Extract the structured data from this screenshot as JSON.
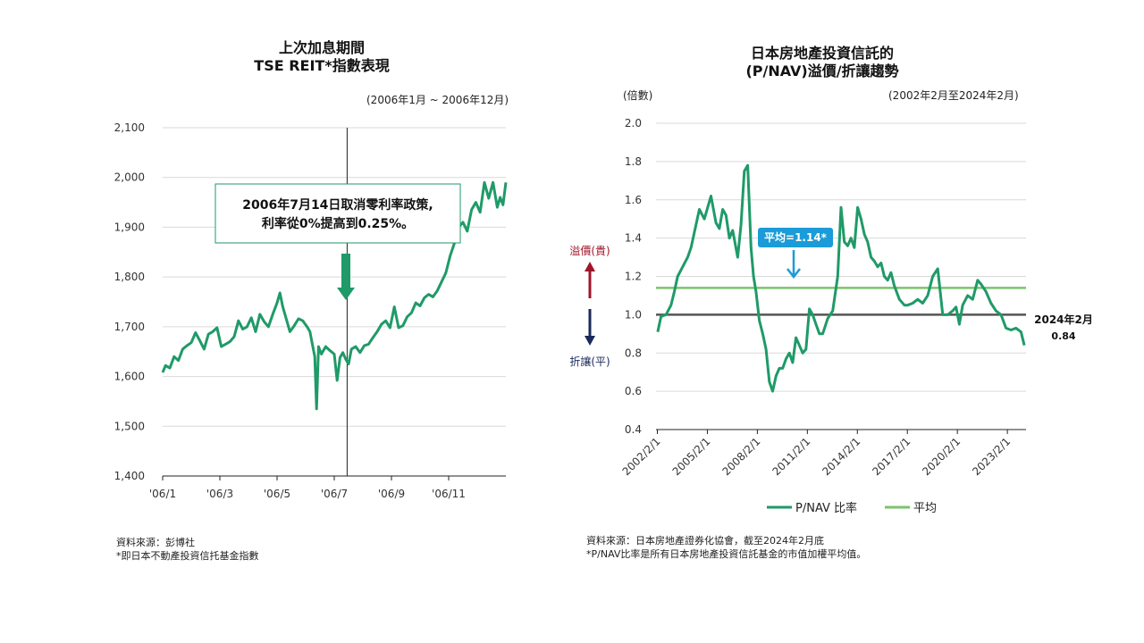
{
  "left": {
    "title1": "上次加息期間",
    "title2": "TSE REIT*指數表現",
    "period": "(2006年1月 ~ 2006年12月)",
    "annotation1": "2006年7月14日取消零利率政策,",
    "annotation2": "利率從0%提高到0.25%。",
    "source": "資料來源：彭博社",
    "footnote": "*即日本不動產投資信托基金指數"
  },
  "right": {
    "title1": "日本房地產投資信託的",
    "title2": "(P/NAV)溢價/折讓趨勢",
    "period": "(2002年2月至2024年2月)",
    "unit": "(倍數)",
    "premium_label": "溢價(貴)",
    "discount_label": "折讓(平)",
    "avg_callout": "平均=1.14*",
    "end_label1": "2024年2月",
    "end_label2": "0.84",
    "legend_pnav": "P/NAV 比率",
    "legend_avg": "平均",
    "source": "資料來源：日本房地產證券化協會，截至2024年2月底",
    "footnote": "*P/NAV比率是所有日本房地產投資信託基金的市值加權平均值。"
  },
  "colors": {
    "series": "#1f9a68",
    "average": "#7cc36b",
    "parity": "#555555",
    "premium": "#a0152a",
    "discount": "#1a2a5a",
    "callout": "#1b9bd7"
  },
  "chart_data": [
    {
      "type": "line",
      "title": "上次加息期間 TSE REIT*指數表現",
      "xlabel": "",
      "ylabel": "",
      "ylim": [
        1400,
        2100
      ],
      "yticks": [
        "1,400",
        "1,500",
        "1,600",
        "1,700",
        "1,800",
        "1,900",
        "2,000",
        "2,100"
      ],
      "yticks_values": [
        1400,
        1500,
        1600,
        1700,
        1800,
        1900,
        2000,
        2100
      ],
      "xticks": [
        "'06/1",
        "'06/3",
        "'06/5",
        "'06/7",
        "'06/9",
        "'06/11"
      ],
      "xticks_months": [
        1,
        3,
        5,
        7,
        9,
        11
      ],
      "xlim_months": [
        1,
        13
      ],
      "event_month": 7.45,
      "grid": true,
      "series": [
        {
          "x": [
            1.0,
            1.1,
            1.25,
            1.4,
            1.55,
            1.7,
            1.85,
            2.0,
            2.15,
            2.3,
            2.45,
            2.6,
            2.75,
            2.9,
            3.05,
            3.2,
            3.35,
            3.5,
            3.65,
            3.8,
            3.95,
            4.1,
            4.25,
            4.4,
            4.55,
            4.7,
            4.85,
            5.0,
            5.1,
            5.2,
            5.3,
            5.45,
            5.6,
            5.75,
            5.9,
            6.05,
            6.15,
            6.25,
            6.32,
            6.38,
            6.45,
            6.55,
            6.7,
            6.85,
            7.0,
            7.1,
            7.2,
            7.3,
            7.4,
            7.5,
            7.6,
            7.75,
            7.9,
            8.05,
            8.2,
            8.35,
            8.5,
            8.65,
            8.8,
            8.95,
            9.1,
            9.25,
            9.4,
            9.55,
            9.7,
            9.85,
            10.0,
            10.15,
            10.3,
            10.45,
            10.6,
            10.75,
            10.9,
            11.05,
            11.2,
            11.35,
            11.5,
            11.65,
            11.8,
            11.95,
            12.1,
            12.25,
            12.4,
            12.55,
            12.7,
            12.8,
            12.9,
            13.0
          ],
          "y": [
            1608,
            1622,
            1617,
            1640,
            1632,
            1655,
            1662,
            1668,
            1688,
            1672,
            1655,
            1685,
            1690,
            1698,
            1660,
            1665,
            1670,
            1680,
            1712,
            1695,
            1700,
            1718,
            1690,
            1725,
            1710,
            1700,
            1725,
            1748,
            1768,
            1740,
            1720,
            1690,
            1702,
            1716,
            1712,
            1700,
            1690,
            1660,
            1640,
            1535,
            1660,
            1645,
            1660,
            1652,
            1645,
            1592,
            1638,
            1648,
            1635,
            1625,
            1655,
            1660,
            1648,
            1662,
            1665,
            1678,
            1690,
            1705,
            1712,
            1698,
            1740,
            1698,
            1702,
            1720,
            1728,
            1748,
            1742,
            1758,
            1765,
            1760,
            1772,
            1790,
            1808,
            1842,
            1868,
            1900,
            1910,
            1892,
            1935,
            1950,
            1930,
            1990,
            1958,
            1990,
            1940,
            1960,
            1945,
            1990
          ]
        }
      ]
    },
    {
      "type": "line",
      "title": "日本房地產投資信託的 (P/NAV)溢價/折讓趨勢",
      "xlabel": "",
      "ylabel": "(倍數)",
      "ylim": [
        0.4,
        2.0
      ],
      "yticks": [
        "0.4",
        "0.6",
        "0.8",
        "1.0",
        "1.2",
        "1.4",
        "1.6",
        "1.8",
        "2.0"
      ],
      "yticks_values": [
        0.4,
        0.6,
        0.8,
        1.0,
        1.2,
        1.4,
        1.6,
        1.8,
        2.0
      ],
      "xticks": [
        "2002/2/1",
        "2005/2/1",
        "2008/2/1",
        "2011/2/1",
        "2014/2/1",
        "2017/2/1",
        "2020/2/1",
        "2023/2/1"
      ],
      "xticks_years": [
        2002.08,
        2005.08,
        2008.08,
        2011.08,
        2014.08,
        2017.08,
        2020.08,
        2023.08
      ],
      "xlim_years": [
        2002.0,
        2024.2
      ],
      "grid": true,
      "series": [
        {
          "name": "P/NAV 比率",
          "x": [
            2002.1,
            2002.3,
            2002.6,
            2002.9,
            2003.1,
            2003.3,
            2003.6,
            2003.9,
            2004.1,
            2004.3,
            2004.6,
            2004.9,
            2005.1,
            2005.3,
            2005.6,
            2005.8,
            2006.0,
            2006.2,
            2006.4,
            2006.6,
            2006.9,
            2007.1,
            2007.3,
            2007.5,
            2007.7,
            2007.85,
            2008.0,
            2008.2,
            2008.4,
            2008.6,
            2008.8,
            2009.0,
            2009.2,
            2009.4,
            2009.6,
            2009.8,
            2010.0,
            2010.2,
            2010.4,
            2010.6,
            2010.8,
            2011.0,
            2011.2,
            2011.4,
            2011.6,
            2011.8,
            2012.0,
            2012.3,
            2012.6,
            2012.9,
            2013.1,
            2013.3,
            2013.5,
            2013.7,
            2013.9,
            2014.1,
            2014.3,
            2014.5,
            2014.7,
            2014.9,
            2015.1,
            2015.3,
            2015.5,
            2015.7,
            2015.9,
            2016.1,
            2016.3,
            2016.6,
            2016.9,
            2017.1,
            2017.4,
            2017.7,
            2018.0,
            2018.3,
            2018.6,
            2018.9,
            2019.2,
            2019.5,
            2019.8,
            2020.0,
            2020.2,
            2020.4,
            2020.7,
            2021.0,
            2021.3,
            2021.5,
            2021.8,
            2022.1,
            2022.4,
            2022.7,
            2023.0,
            2023.3,
            2023.6,
            2023.9,
            2024.1
          ],
          "y": [
            0.91,
            0.99,
            1.0,
            1.05,
            1.12,
            1.2,
            1.25,
            1.3,
            1.35,
            1.43,
            1.55,
            1.5,
            1.56,
            1.62,
            1.48,
            1.45,
            1.55,
            1.52,
            1.4,
            1.44,
            1.3,
            1.47,
            1.75,
            1.78,
            1.35,
            1.2,
            1.12,
            0.97,
            0.9,
            0.82,
            0.65,
            0.6,
            0.68,
            0.72,
            0.72,
            0.77,
            0.8,
            0.75,
            0.88,
            0.84,
            0.8,
            0.82,
            1.03,
            1.0,
            0.95,
            0.9,
            0.9,
            0.98,
            1.02,
            1.2,
            1.56,
            1.38,
            1.36,
            1.4,
            1.35,
            1.56,
            1.5,
            1.42,
            1.38,
            1.3,
            1.28,
            1.25,
            1.27,
            1.2,
            1.18,
            1.22,
            1.15,
            1.08,
            1.05,
            1.05,
            1.06,
            1.08,
            1.06,
            1.1,
            1.2,
            1.24,
            1.0,
            1.0,
            1.02,
            1.04,
            0.95,
            1.05,
            1.1,
            1.08,
            1.18,
            1.16,
            1.12,
            1.06,
            1.02,
            1.0,
            0.93,
            0.92,
            0.93,
            0.91,
            0.84
          ]
        },
        {
          "name": "平均",
          "value": 1.14
        }
      ],
      "reference_line": 1.0
    }
  ]
}
